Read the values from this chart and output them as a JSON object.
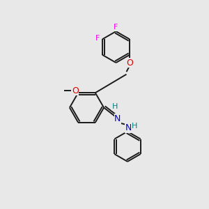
{
  "background_color": "#e8e8e8",
  "bond_color": "#1a1a1a",
  "atom_colors": {
    "F": "#ee00ee",
    "O": "#dd0000",
    "N": "#0000cc",
    "H_label": "#008080",
    "C": "#1a1a1a"
  },
  "figsize": [
    3.0,
    3.0
  ],
  "dpi": 100,
  "xlim": [
    0,
    10
  ],
  "ylim": [
    0,
    10
  ]
}
